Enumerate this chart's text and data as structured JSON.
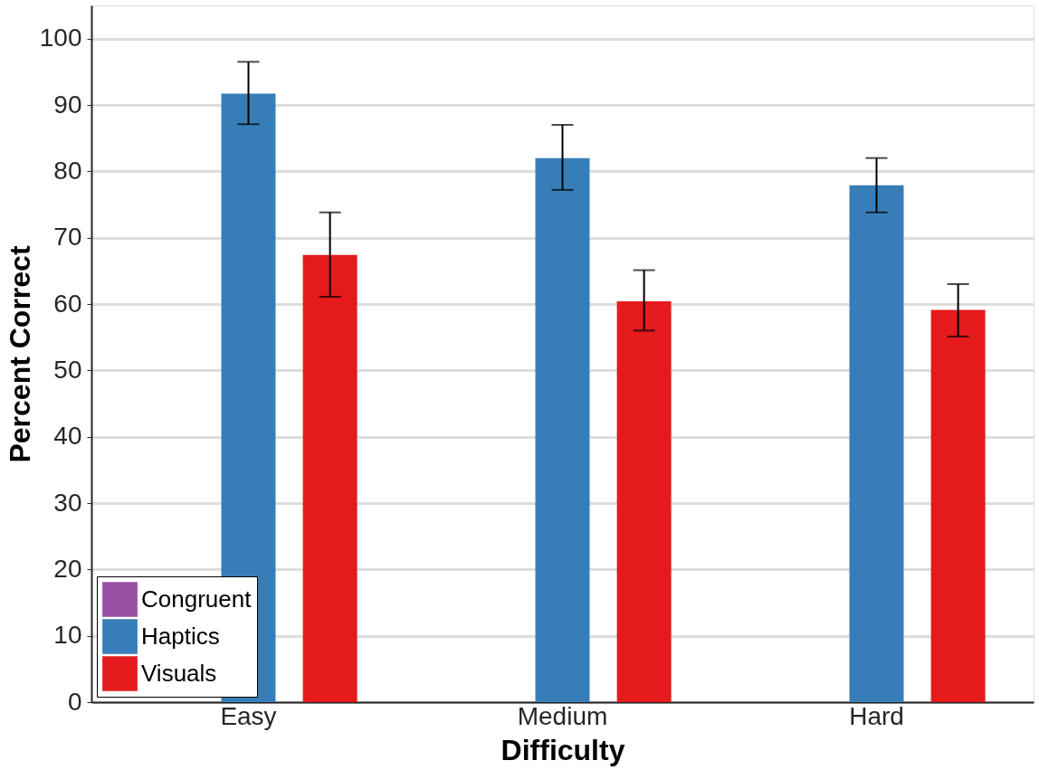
{
  "chart_data": {
    "type": "bar",
    "xlabel": "Difficulty",
    "ylabel": "Percent Correct",
    "categories": [
      "Easy",
      "Medium",
      "Hard"
    ],
    "series": [
      {
        "name": "Congruent",
        "color": "#984ea3",
        "values": [
          0,
          0,
          0
        ]
      },
      {
        "name": "Haptics",
        "color": "#377eb8",
        "values": [
          91.7,
          82.0,
          77.9
        ],
        "errors": [
          [
            87.1,
            96.5
          ],
          [
            77.2,
            87.0
          ],
          [
            73.8,
            82.0
          ]
        ]
      },
      {
        "name": "Visuals",
        "color": "#e41a1c",
        "values": [
          67.4,
          60.4,
          59.1
        ],
        "errors": [
          [
            61.1,
            73.8
          ],
          [
            56.0,
            65.1
          ],
          [
            55.1,
            63.0
          ]
        ]
      }
    ],
    "ylim": [
      0,
      105
    ],
    "yticks": [
      0,
      10,
      20,
      30,
      40,
      50,
      60,
      70,
      80,
      90,
      100
    ],
    "grid": "y",
    "legend": "bottom left"
  }
}
